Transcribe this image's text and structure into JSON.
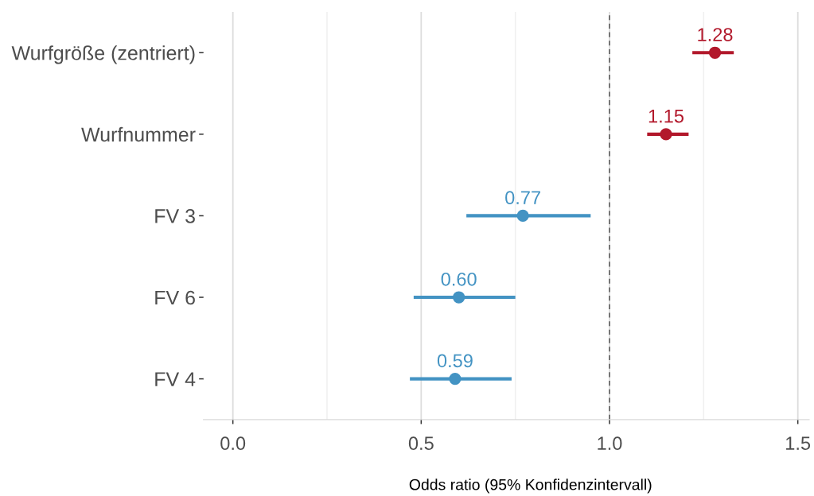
{
  "chart_data": {
    "type": "scatter",
    "orientation": "horizontal",
    "categories": [
      "Wurfgröße (zentriert)",
      "Wurfnummer",
      "FV 3",
      "FV 6",
      "FV 4"
    ],
    "series": [
      {
        "color": "#b2182b",
        "values": [
          1.28,
          1.15,
          null,
          null,
          null
        ],
        "errors": [
          [
            1.22,
            1.33
          ],
          [
            1.1,
            1.21
          ],
          null,
          null,
          null
        ],
        "value_labels": [
          "1.28",
          "1.15",
          null,
          null,
          null
        ]
      },
      {
        "color": "#4393c3",
        "values": [
          null,
          null,
          0.77,
          0.6,
          0.59
        ],
        "errors": [
          null,
          null,
          [
            0.62,
            0.95
          ],
          [
            0.48,
            0.75
          ],
          [
            0.47,
            0.74
          ]
        ],
        "value_labels": [
          null,
          null,
          "0.77",
          "0.60",
          "0.59"
        ]
      }
    ],
    "xlabel": "Odds ratio (95% Konfidenzintervall)",
    "xlim": [
      -0.078,
      1.53
    ],
    "xticks": [
      {
        "value": 0,
        "label": "0.0"
      },
      {
        "value": 0.5,
        "label": "0.5"
      },
      {
        "value": 1,
        "label": "1.0"
      },
      {
        "value": 1.5,
        "label": "1.5"
      }
    ],
    "ref_lines": [
      {
        "axis": "x",
        "value": 1,
        "color": "#555555",
        "line_style": "dashed"
      }
    ],
    "grid": "x",
    "marker": "circle",
    "legend": false
  }
}
